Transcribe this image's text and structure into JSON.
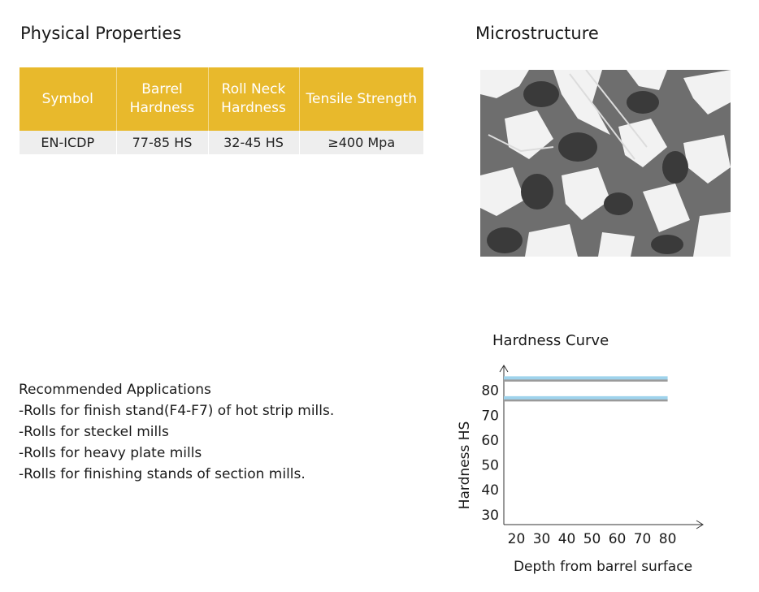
{
  "physical_properties": {
    "title": "Physical Properties",
    "headers": [
      "Symbol",
      "Barrel Hardness",
      "Roll Neck Hardness",
      "Tensile Strength"
    ],
    "row": [
      "EN-ICDP",
      "77-85 HS",
      "32-45 HS",
      "≥400 Mpa"
    ],
    "header_color": "#e8b92c"
  },
  "microstructure": {
    "title": "Microstructure"
  },
  "applications": {
    "title": "Recommended Applications",
    "items": [
      "-Rolls for finish stand(F4-F7) of hot strip mills.",
      "-Rolls for steckel mills",
      "-Rolls for heavy plate mills",
      "-Rolls for finishing stands of section mills."
    ]
  },
  "chart_data": {
    "type": "line",
    "title": "Hardness Curve",
    "xlabel": "Depth from barrel surface",
    "ylabel": "Hardness HS",
    "x_ticks": [
      20,
      30,
      40,
      50,
      60,
      70,
      80
    ],
    "y_ticks": [
      30,
      40,
      50,
      60,
      70,
      80
    ],
    "xlim": [
      15,
      94
    ],
    "ylim": [
      26,
      90
    ],
    "grid": false,
    "series": [
      {
        "x": [
          15,
          80
        ],
        "y": [
          85,
          85
        ],
        "color": "#9fd3ec"
      },
      {
        "x": [
          15,
          80
        ],
        "y": [
          77,
          77
        ],
        "color": "#9fd3ec"
      }
    ]
  }
}
